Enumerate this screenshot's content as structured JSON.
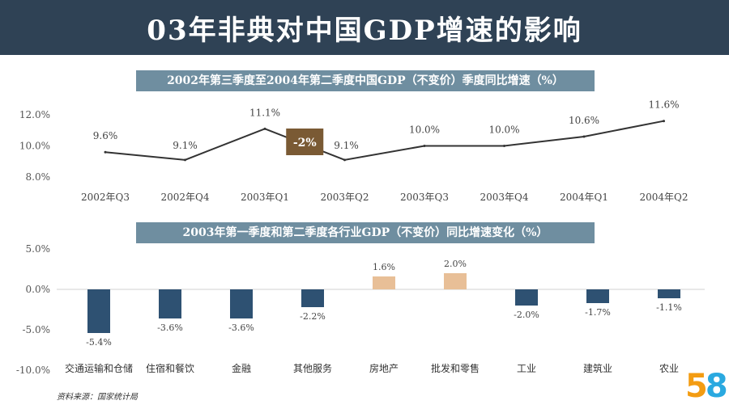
{
  "title": "03年非典对中国GDP增速的影响",
  "source": "资料来源：国家统计局",
  "logo": {
    "d1": "5",
    "d2": "8"
  },
  "chart_data": [
    {
      "type": "line",
      "title": "2002年第三季度至2004年第二季度中国GDP（不变价）季度同比增速（%）",
      "categories": [
        "2002年Q3",
        "2002年Q4",
        "2003年Q1",
        "2003年Q2",
        "2003年Q3",
        "2003年Q4",
        "2004年Q1",
        "2004年Q2"
      ],
      "values": [
        9.6,
        9.1,
        11.1,
        9.1,
        10.0,
        10.0,
        10.6,
        11.6
      ],
      "value_labels": [
        "9.6%",
        "9.1%",
        "11.1%",
        "9.1%",
        "10.0%",
        "10.0%",
        "10.6%",
        "11.6%"
      ],
      "yticks": [
        "12.0%",
        "10.0%",
        "8.0%"
      ],
      "ytick_values": [
        12,
        10,
        8
      ],
      "ylim": [
        8,
        12
      ],
      "annotation": "-2%",
      "color": "#333333",
      "annotation_color": "#7a5a34"
    },
    {
      "type": "bar",
      "title": "2003年第一季度和第二季度各行业GDP（不变价）同比增速变化（%）",
      "categories": [
        "交通运输和仓储",
        "住宿和餐饮",
        "金融",
        "其他服务",
        "房地产",
        "批发和零售",
        "工业",
        "建筑业",
        "农业"
      ],
      "values": [
        -5.4,
        -3.6,
        -3.6,
        -2.2,
        1.6,
        2.0,
        -2.0,
        -1.7,
        -1.1
      ],
      "value_labels": [
        "-5.4%",
        "-3.6%",
        "-3.6%",
        "-2.2%",
        "1.6%",
        "2.0%",
        "-2.0%",
        "-1.7%",
        "-1.1%"
      ],
      "yticks": [
        "5.0%",
        "0.0%",
        "-5.0%",
        "-10.0%"
      ],
      "ytick_values": [
        5,
        0,
        -5,
        -10
      ],
      "ylim": [
        -10,
        5
      ],
      "negative_color": "#2e5172",
      "positive_color": "#e8bf97"
    }
  ]
}
